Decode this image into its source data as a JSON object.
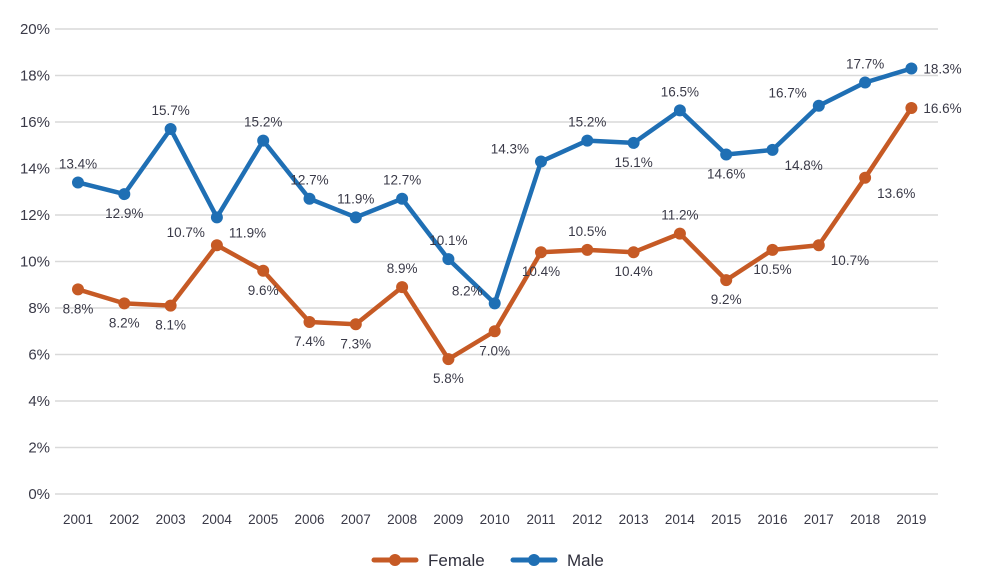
{
  "chart_data": {
    "type": "line",
    "title": "",
    "xlabel": "",
    "ylabel": "",
    "x": [
      "2001",
      "2002",
      "2003",
      "2004",
      "2005",
      "2006",
      "2007",
      "2008",
      "2009",
      "2010",
      "2011",
      "2012",
      "2013",
      "2014",
      "2015",
      "2016",
      "2017",
      "2018",
      "2019"
    ],
    "ylim": [
      0,
      20
    ],
    "yticks": [
      0,
      2,
      4,
      6,
      8,
      10,
      12,
      14,
      16,
      18,
      20
    ],
    "ytick_labels": [
      "0%",
      "2%",
      "4%",
      "6%",
      "8%",
      "10%",
      "12%",
      "14%",
      "16%",
      "18%",
      "20%"
    ],
    "grid": true,
    "legend_position": "bottom-center",
    "series": [
      {
        "name": "Female",
        "color": "#c65a25",
        "values": [
          8.8,
          8.2,
          8.1,
          10.7,
          9.6,
          7.4,
          7.3,
          8.9,
          5.8,
          7.0,
          10.4,
          10.5,
          10.4,
          11.2,
          9.2,
          10.5,
          10.7,
          13.6,
          16.6
        ],
        "labels": [
          "8.8%",
          "8.2%",
          "8.1%",
          "10.7%",
          "9.6%",
          "7.4%",
          "7.3%",
          "8.9%",
          "5.8%",
          "7.0%",
          "10.4%",
          "10.5%",
          "10.4%",
          "11.2%",
          "9.2%",
          "10.5%",
          "10.7%",
          "13.6%",
          "16.6%"
        ],
        "label_side": [
          "below",
          "below",
          "below",
          "left",
          "below",
          "below",
          "below",
          "above",
          "below",
          "below",
          "below",
          "above",
          "below",
          "above",
          "below",
          "below",
          "right",
          "right",
          "right"
        ]
      },
      {
        "name": "Male",
        "color": "#1f6fb4",
        "values": [
          13.4,
          12.9,
          15.7,
          11.9,
          15.2,
          12.7,
          11.9,
          12.7,
          10.1,
          8.2,
          14.3,
          15.2,
          15.1,
          16.5,
          14.6,
          14.8,
          16.7,
          17.7,
          18.3
        ],
        "labels": [
          "13.4%",
          "12.9%",
          "15.7%",
          "11.9%",
          "15.2%",
          "12.7%",
          "11.9%",
          "12.7%",
          "10.1%",
          "8.2%",
          "14.3%",
          "15.2%",
          "15.1%",
          "16.5%",
          "14.6%",
          "14.8%",
          "16.7%",
          "17.7%",
          "18.3%"
        ],
        "label_side": [
          "above",
          "below",
          "above",
          "right",
          "above",
          "above",
          "above",
          "above",
          "above",
          "left",
          "left",
          "above",
          "below",
          "above",
          "below",
          "right",
          "left",
          "above",
          "right"
        ]
      }
    ]
  }
}
